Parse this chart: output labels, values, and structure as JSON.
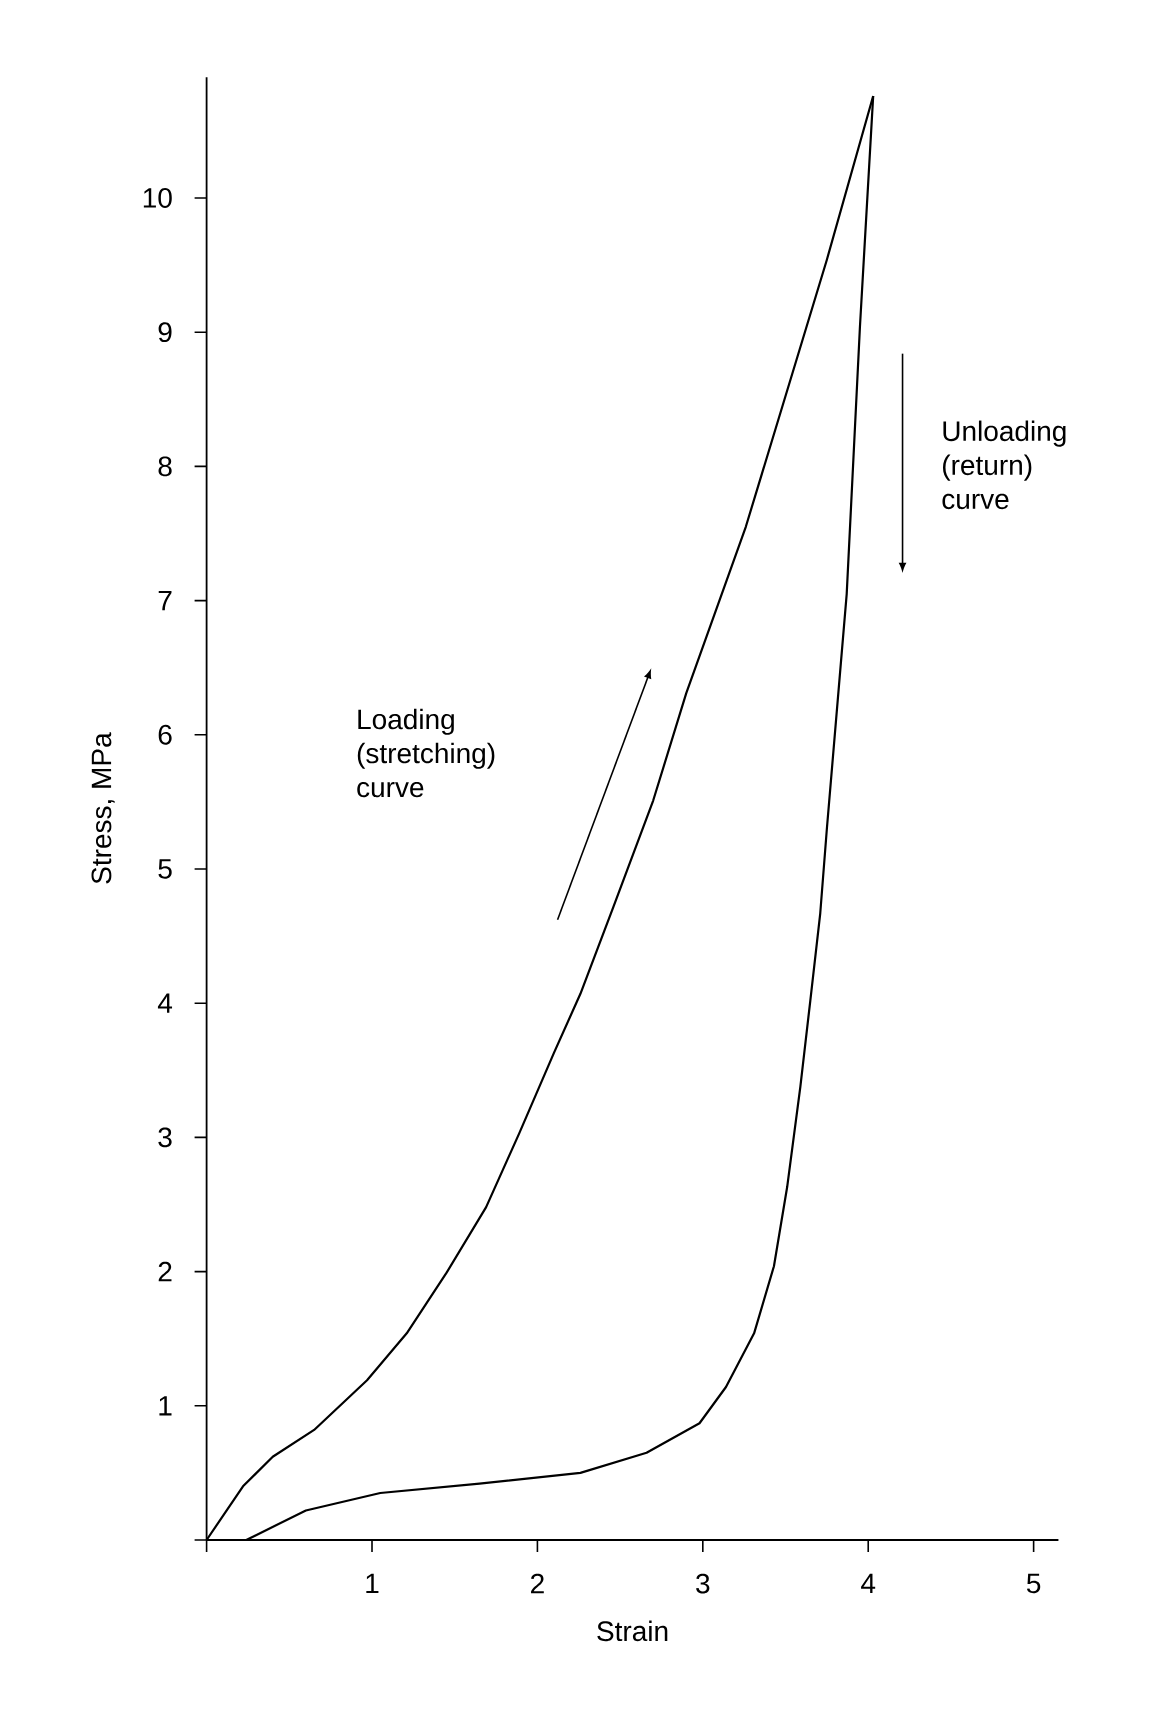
{
  "chart_data": {
    "type": "line",
    "xlabel": "Strain",
    "ylabel": "Stress, MPa",
    "xlim": [
      0,
      5.15
    ],
    "ylim": [
      0,
      10.9
    ],
    "xticks": [
      {
        "value": 0,
        "label": null
      },
      1,
      2,
      3,
      4,
      5
    ],
    "yticks": [
      {
        "value": 0,
        "label": null
      },
      1,
      2,
      3,
      4,
      5,
      6,
      7,
      8,
      9,
      10
    ],
    "grid": false,
    "legend": false,
    "marker": "none",
    "line_style": "solid",
    "series": [
      {
        "color": "#000000",
        "x": [
          0,
          0.22,
          0.4,
          0.65,
          0.97,
          1.21,
          1.45,
          1.69,
          1.89,
          2.1,
          2.26,
          2.46,
          2.7,
          2.9,
          3.26,
          3.75,
          4.03
        ],
        "values": [
          0,
          0.4,
          0.62,
          0.82,
          1.19,
          1.54,
          1.99,
          2.48,
          3.03,
          3.63,
          4.07,
          4.72,
          5.51,
          6.31,
          7.55,
          9.54,
          10.76
        ]
      },
      {
        "color": "#000000",
        "x": [
          4.03,
          3.95,
          3.87,
          3.75,
          3.71,
          3.65,
          3.59,
          3.51,
          3.43,
          3.31,
          3.14,
          2.98,
          2.66,
          2.26,
          1.65,
          1.05,
          0.6,
          0.24
        ],
        "values": [
          10.76,
          9.04,
          7.05,
          5.3,
          4.67,
          4.02,
          3.38,
          2.63,
          2.04,
          1.54,
          1.14,
          0.87,
          0.65,
          0.5,
          0.42,
          0.35,
          0.22,
          0
        ]
      }
    ],
    "annotations": [
      "Loading (stretching) curve",
      "Unloading (return) curve"
    ]
  }
}
